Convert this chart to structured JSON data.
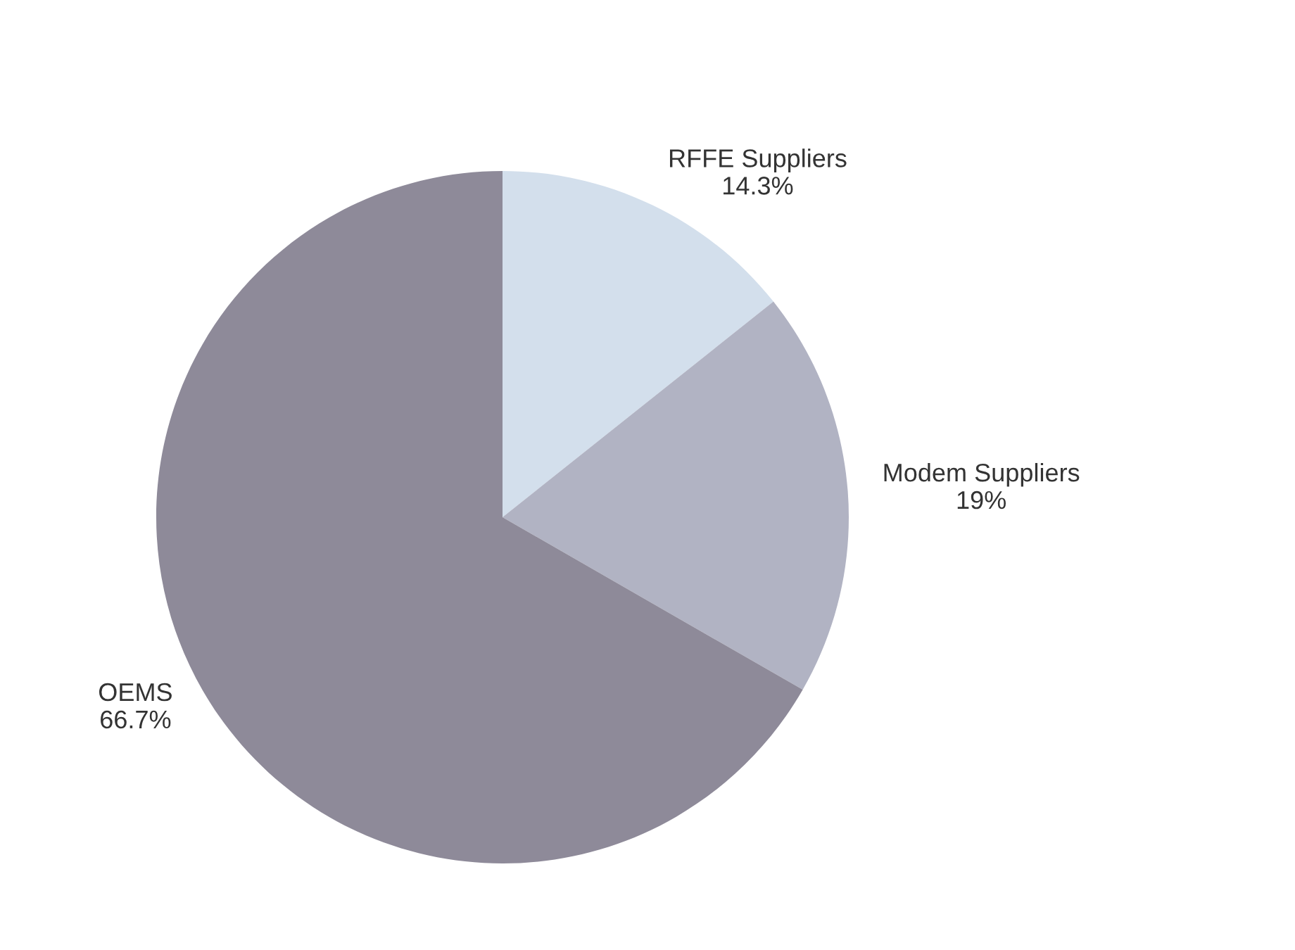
{
  "chart_data": {
    "type": "pie",
    "categories": [
      "RFFE Suppliers",
      "Modem Suppliers",
      "OEMS"
    ],
    "values": [
      14.3,
      19,
      66.7
    ],
    "value_labels": [
      "14.3%",
      "19%",
      "66.7%"
    ],
    "colors": [
      "#d3dfec",
      "#b1b3c3",
      "#8e8a99"
    ],
    "legend": false
  }
}
